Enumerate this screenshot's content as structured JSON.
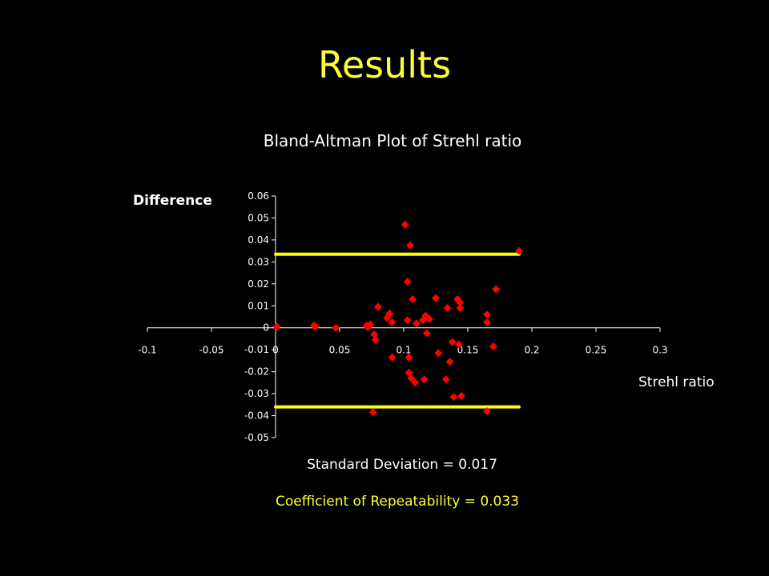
{
  "slide": {
    "title": "Results"
  },
  "chart_data": {
    "type": "scatter",
    "title": "Bland-Altman Plot of Strehl ratio",
    "xlabel": "Strehl ratio",
    "ylabel": "Difference",
    "xlim": [
      -0.1,
      0.3
    ],
    "ylim": [
      -0.05,
      0.06
    ],
    "x_ticks": [
      "-0.1",
      "-0.05",
      "0",
      "0.05",
      "0.1",
      "0.15",
      "0.2",
      "0.25",
      "0.3"
    ],
    "y_ticks": [
      "0.06",
      "0.05",
      "0.04",
      "0.03",
      "0.02",
      "0.01",
      "0",
      "-0.01",
      "-0.02",
      "-0.03",
      "-0.04",
      "-0.05"
    ],
    "grid": false,
    "marker_color": "#ff0000",
    "limit_line_color": "#ffff00",
    "limit_lines": [
      {
        "y": 0.0335,
        "x_start": 0.0,
        "x_end": 0.19
      },
      {
        "y": -0.036,
        "x_start": 0.0,
        "x_end": 0.19
      }
    ],
    "points": [
      {
        "x": 0.001,
        "y": 0.0005
      },
      {
        "x": 0.03,
        "y": 0.001
      },
      {
        "x": 0.031,
        "y": 0.0005
      },
      {
        "x": 0.047,
        "y": 0.0
      },
      {
        "x": 0.071,
        "y": 0.001
      },
      {
        "x": 0.072,
        "y": 0.0002
      },
      {
        "x": 0.074,
        "y": 0.0015
      },
      {
        "x": 0.077,
        "y": -0.003
      },
      {
        "x": 0.078,
        "y": -0.0055
      },
      {
        "x": 0.08,
        "y": 0.0095
      },
      {
        "x": 0.076,
        "y": -0.0385
      },
      {
        "x": 0.087,
        "y": 0.0045
      },
      {
        "x": 0.089,
        "y": 0.0065
      },
      {
        "x": 0.091,
        "y": 0.0025
      },
      {
        "x": 0.091,
        "y": -0.0135
      },
      {
        "x": 0.101,
        "y": 0.047
      },
      {
        "x": 0.103,
        "y": 0.021
      },
      {
        "x": 0.103,
        "y": 0.0035
      },
      {
        "x": 0.104,
        "y": -0.0135
      },
      {
        "x": 0.104,
        "y": -0.0205
      },
      {
        "x": 0.105,
        "y": 0.0375
      },
      {
        "x": 0.106,
        "y": -0.023
      },
      {
        "x": 0.107,
        "y": 0.013
      },
      {
        "x": 0.109,
        "y": -0.025
      },
      {
        "x": 0.11,
        "y": 0.002
      },
      {
        "x": 0.115,
        "y": 0.0035
      },
      {
        "x": 0.117,
        "y": 0.0055
      },
      {
        "x": 0.118,
        "y": -0.0025
      },
      {
        "x": 0.116,
        "y": -0.0235
      },
      {
        "x": 0.12,
        "y": 0.004
      },
      {
        "x": 0.125,
        "y": 0.0135
      },
      {
        "x": 0.127,
        "y": -0.0115
      },
      {
        "x": 0.134,
        "y": 0.009
      },
      {
        "x": 0.133,
        "y": -0.0235
      },
      {
        "x": 0.136,
        "y": -0.0155
      },
      {
        "x": 0.138,
        "y": -0.0065
      },
      {
        "x": 0.139,
        "y": -0.0315
      },
      {
        "x": 0.142,
        "y": 0.013
      },
      {
        "x": 0.143,
        "y": -0.0075
      },
      {
        "x": 0.144,
        "y": 0.0115
      },
      {
        "x": 0.144,
        "y": 0.009
      },
      {
        "x": 0.145,
        "y": -0.031
      },
      {
        "x": 0.165,
        "y": 0.006
      },
      {
        "x": 0.165,
        "y": 0.0025
      },
      {
        "x": 0.165,
        "y": -0.038
      },
      {
        "x": 0.17,
        "y": -0.0085
      },
      {
        "x": 0.172,
        "y": 0.0175
      },
      {
        "x": 0.19,
        "y": 0.035
      }
    ]
  },
  "annotations": {
    "std_dev": "Standard Deviation = 0.017",
    "coef_repeatability": "Coefficient of Repeatability = 0.033"
  }
}
